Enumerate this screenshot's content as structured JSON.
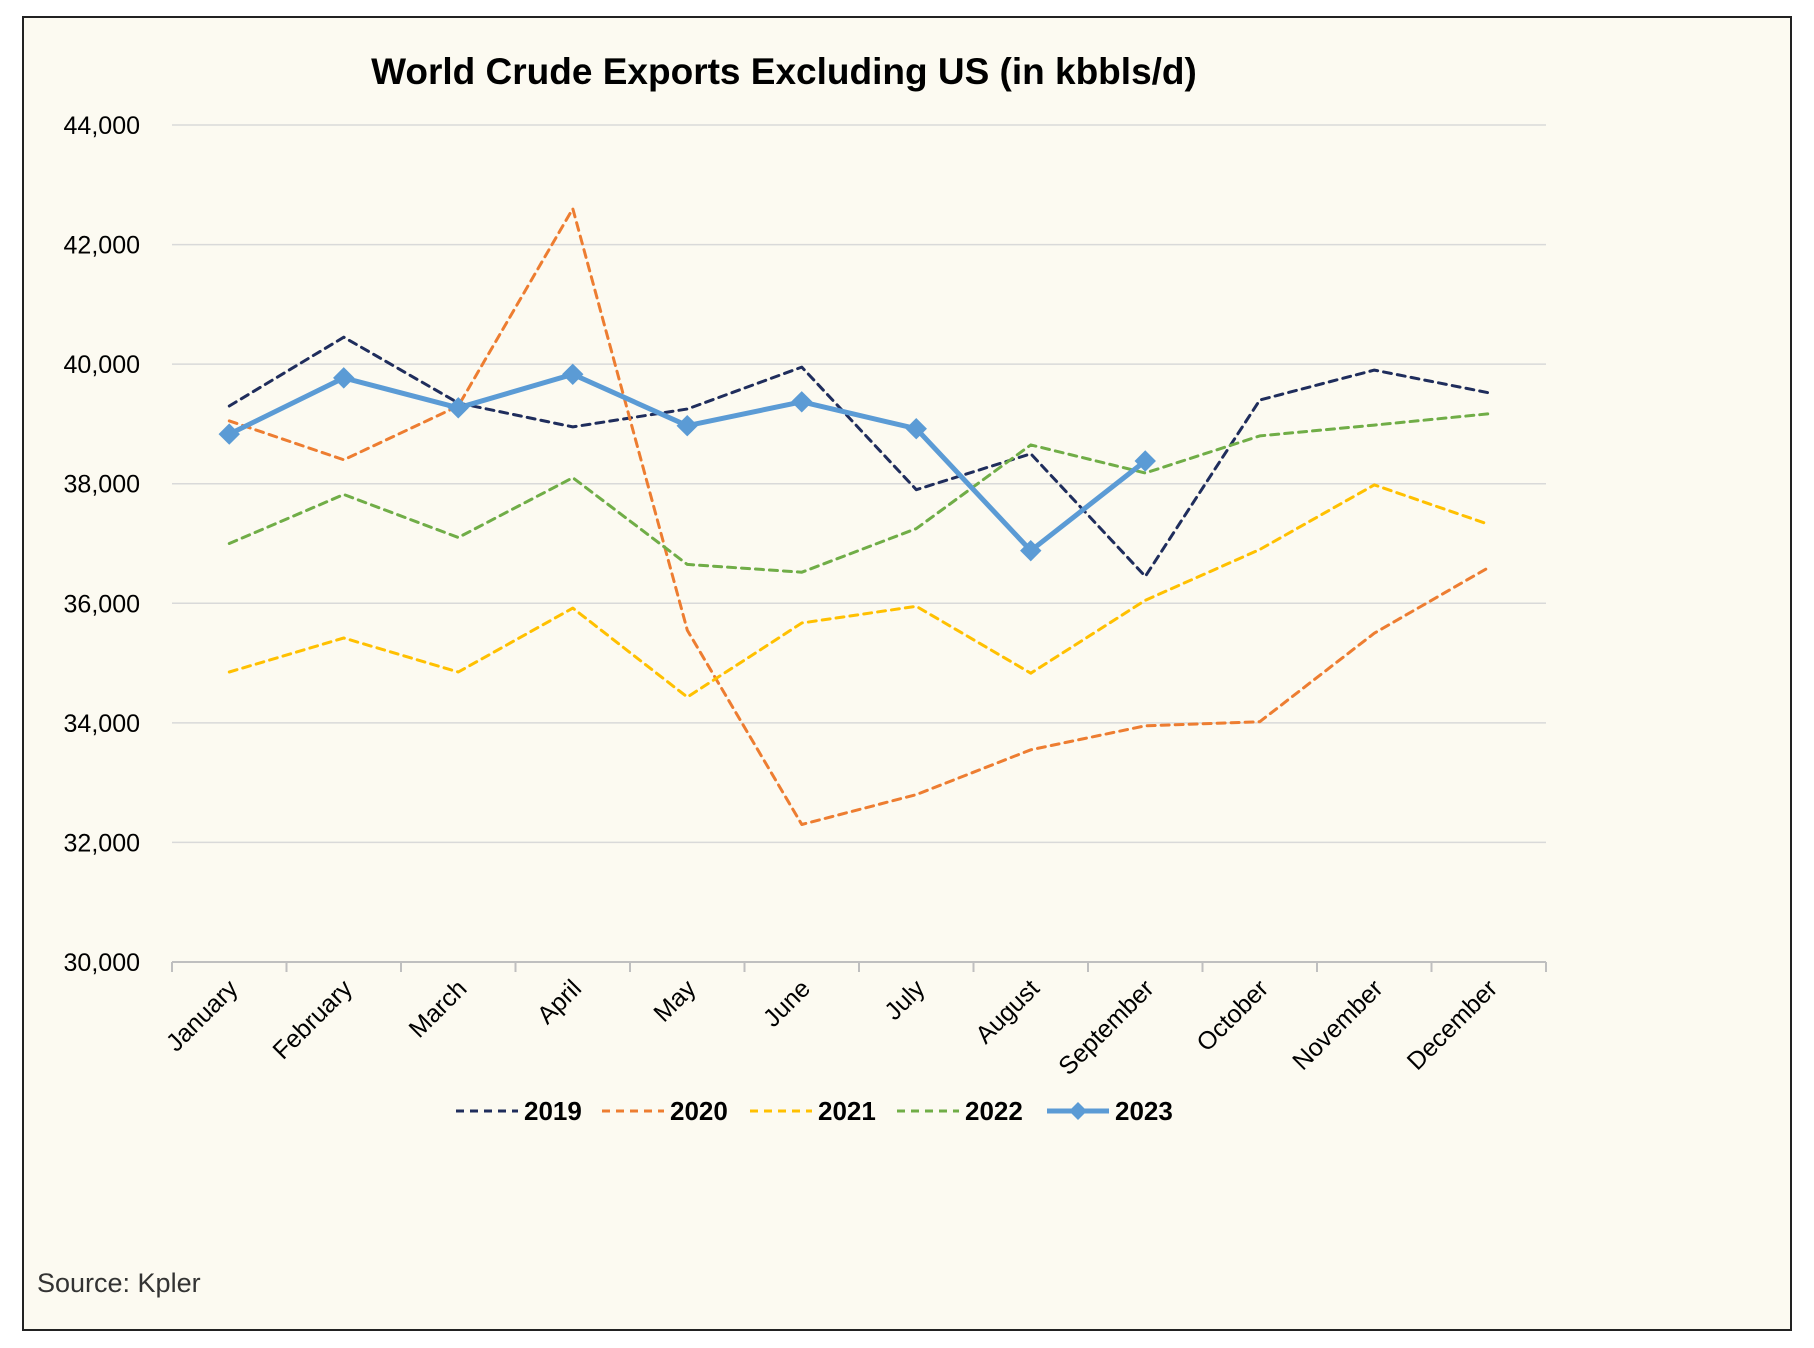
{
  "chart_data": {
    "type": "line",
    "title": "World Crude Exports Excluding US (in kbbls/d)",
    "source": "Source: Kpler",
    "xlabel": "",
    "ylabel": "",
    "ylim": [
      30000,
      44000
    ],
    "yticks": [
      30000,
      32000,
      34000,
      36000,
      38000,
      40000,
      42000,
      44000
    ],
    "ytick_labels": [
      "30,000",
      "32,000",
      "34,000",
      "36,000",
      "38,000",
      "40,000",
      "42,000",
      "44,000"
    ],
    "grid": true,
    "legend_position": "bottom",
    "categories": [
      "January",
      "February",
      "March",
      "April",
      "May",
      "June",
      "July",
      "August",
      "September",
      "October",
      "November",
      "December"
    ],
    "series": [
      {
        "name": "2019",
        "color": "#1f2d5c",
        "style": "dashed",
        "markers": false,
        "values": [
          39300,
          40450,
          39350,
          38950,
          39250,
          39950,
          37900,
          38500,
          36450,
          39400,
          39900,
          39520
        ]
      },
      {
        "name": "2020",
        "color": "#ed7d31",
        "style": "dashed",
        "markers": false,
        "values": [
          39050,
          38400,
          39300,
          42600,
          35550,
          32300,
          32800,
          33550,
          33950,
          34020,
          35500,
          36600
        ]
      },
      {
        "name": "2021",
        "color": "#ffc000",
        "style": "dashed",
        "markers": false,
        "values": [
          34850,
          35420,
          34850,
          35920,
          34430,
          35670,
          35950,
          34830,
          36050,
          36900,
          37980,
          37320
        ]
      },
      {
        "name": "2022",
        "color": "#70ad47",
        "style": "dashed",
        "markers": false,
        "values": [
          37000,
          37820,
          37100,
          38100,
          36650,
          36520,
          37250,
          38650,
          38180,
          38800,
          38980,
          39170
        ]
      },
      {
        "name": "2023",
        "color": "#5b9bd5",
        "style": "solid",
        "markers": true,
        "values": [
          38830,
          39770,
          39270,
          39830,
          38970,
          39370,
          38920,
          36880,
          38380,
          null,
          null,
          null
        ]
      }
    ]
  }
}
